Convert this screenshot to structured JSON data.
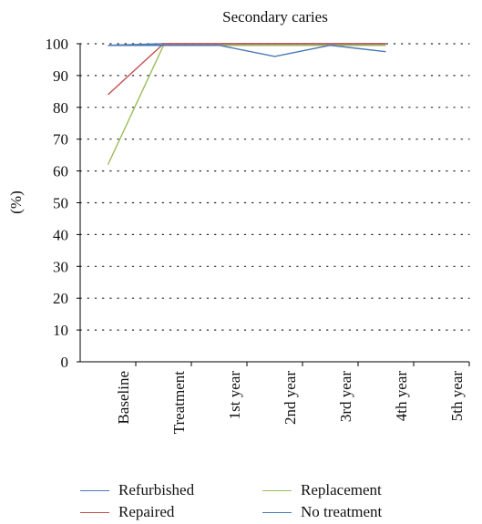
{
  "chart_data": {
    "type": "line",
    "title": "Secondary caries",
    "ylabel": "(%)",
    "xlabel": "",
    "ylim": [
      0,
      100
    ],
    "yticks": [
      0,
      10,
      20,
      30,
      40,
      50,
      60,
      70,
      80,
      90,
      100
    ],
    "categories": [
      "Baseline",
      "Treatment",
      "1st year",
      "2nd year",
      "3rd year",
      "4th year",
      "5th year"
    ],
    "grid": "horizontal dotted",
    "legend_position": "bottom",
    "series": [
      {
        "name": "Refurbished",
        "color": "#4a7ab5",
        "x": [
          0.5,
          1.5,
          2.5,
          3.5,
          4.5,
          5.5
        ],
        "values": [
          99.5,
          100,
          100,
          100,
          100,
          100
        ]
      },
      {
        "name": "Repaired",
        "color": "#c0504d",
        "x": [
          0.5,
          1.5,
          2.5,
          3.5,
          4.5,
          5.5
        ],
        "values": [
          84,
          100,
          100,
          100,
          100,
          100
        ]
      },
      {
        "name": "Replacement",
        "color": "#9bbb59",
        "x": [
          0.5,
          1.5,
          2.5,
          3.5,
          4.5,
          5.5
        ],
        "values": [
          62,
          99.5,
          99.5,
          99.5,
          99.5,
          99.5
        ]
      },
      {
        "name": "No treatment",
        "color": "#4a7ab5",
        "x": [
          0.5,
          1.5,
          2.5,
          3.5,
          4.5,
          5.5
        ],
        "values": [
          99.5,
          99.5,
          99.5,
          96,
          99.5,
          97.5
        ]
      }
    ]
  }
}
